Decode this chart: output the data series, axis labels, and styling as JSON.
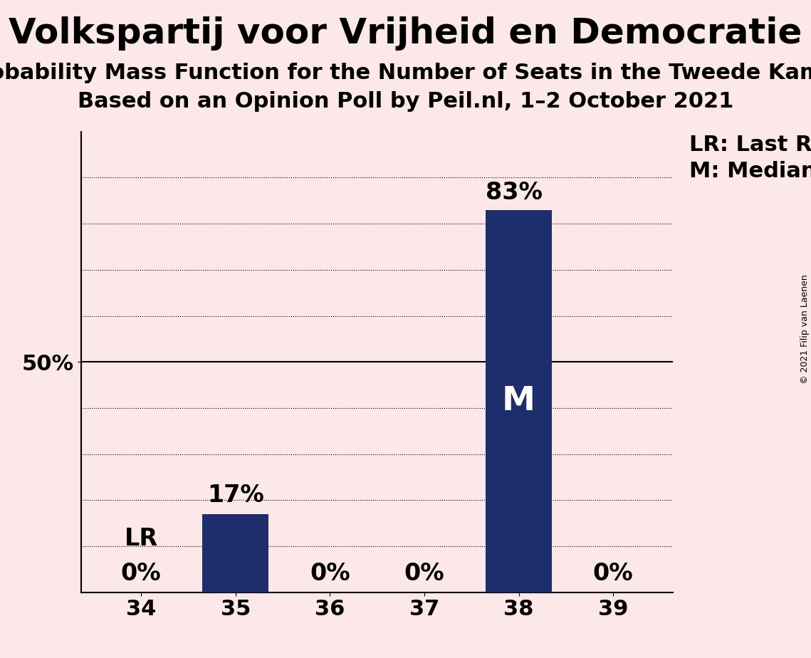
{
  "title": "Volkspartij voor Vrijheid en Democratie",
  "subtitle1": "Probability Mass Function for the Number of Seats in the Tweede Kamer",
  "subtitle2": "Based on an Opinion Poll by Peil.nl, 1–2 October 2021",
  "copyright": "© 2021 Filip van Laenen",
  "categories": [
    34,
    35,
    36,
    37,
    38,
    39
  ],
  "values": [
    0,
    17,
    0,
    0,
    83,
    0
  ],
  "bar_color": "#1e2d6b",
  "background_color": "#fce8e8",
  "last_result_seat": 34,
  "median_seat": 38,
  "legend_lr": "LR: Last Result",
  "legend_m": "M: Median",
  "ylim": [
    0,
    100
  ],
  "grid_values": [
    10,
    20,
    30,
    40,
    50,
    60,
    70,
    80,
    90
  ],
  "tick_fontsize": 22,
  "title_fontsize": 36,
  "subtitle_fontsize": 22,
  "annotation_fontsize": 24,
  "legend_fontsize": 22,
  "copyright_fontsize": 9
}
